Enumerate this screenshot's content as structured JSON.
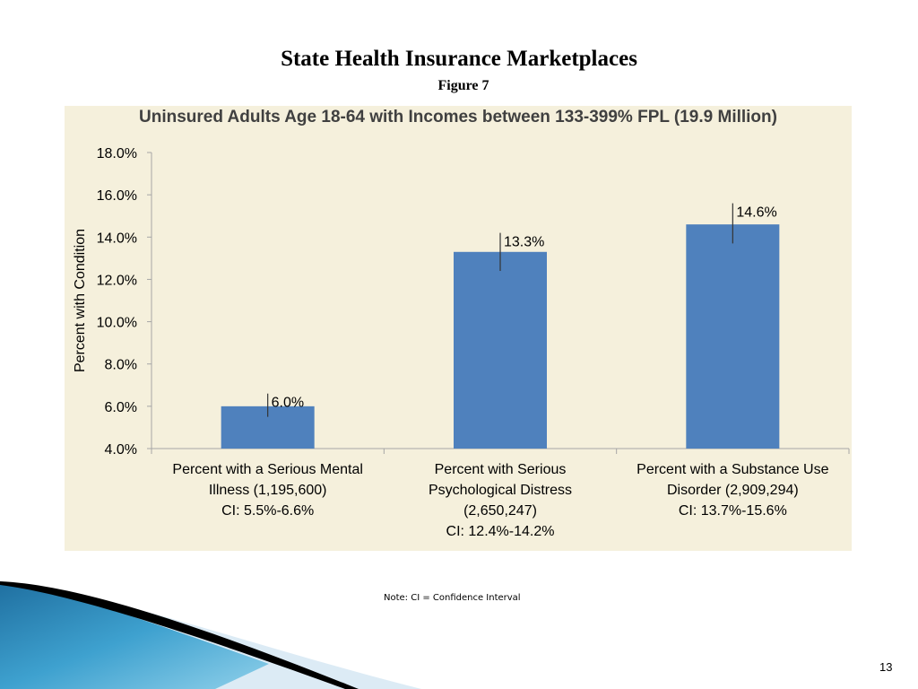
{
  "slide": {
    "title": "State Health Insurance Marketplaces",
    "subtitle": "Figure 7",
    "note": "Note: CI = Confidence Interval",
    "page_number": "13"
  },
  "colors": {
    "bar": "#4f81bd",
    "panel_background": "#f5f0dc",
    "title_text": "#404040"
  },
  "chart_data": {
    "type": "bar",
    "title": "Uninsured Adults Age 18-64 with Incomes between 133-399% FPL (19.9 Million)",
    "ylabel": "Percent with Condition",
    "xlabel": "",
    "ylim": [
      4,
      18
    ],
    "yticks": [
      4,
      6,
      8,
      10,
      12,
      14,
      16,
      18
    ],
    "ytick_labels": [
      "4.0%",
      "6.0%",
      "8.0%",
      "10.0%",
      "12.0%",
      "14.0%",
      "16.0%",
      "18.0%"
    ],
    "categories": [
      [
        "Percent with a Serious Mental",
        "Illness (1,195,600)",
        "CI: 5.5%-6.6%"
      ],
      [
        "Percent with Serious",
        "Psychological Distress",
        "(2,650,247)",
        "CI: 12.4%-14.2%"
      ],
      [
        "Percent with a Substance Use",
        "Disorder (2,909,294)",
        "CI: 13.7%-15.6%"
      ]
    ],
    "values": [
      6.0,
      13.3,
      14.6
    ],
    "value_labels": [
      "6.0%",
      "13.3%",
      "14.6%"
    ],
    "error_low": [
      5.5,
      12.4,
      13.7
    ],
    "error_high": [
      6.6,
      14.2,
      15.6
    ],
    "grid": false,
    "legend": "none"
  }
}
